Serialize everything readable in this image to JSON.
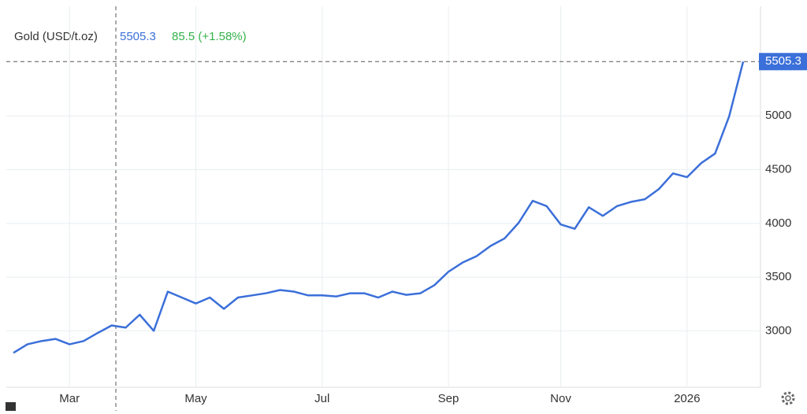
{
  "chart_data": {
    "type": "line",
    "title": "Gold (USD/t.oz)",
    "change": "85.5 (+1.58%)",
    "categories": [
      null,
      null,
      null,
      null,
      "Mar",
      null,
      null,
      null,
      null,
      null,
      null,
      null,
      null,
      "May",
      null,
      null,
      null,
      null,
      null,
      null,
      null,
      null,
      "Jul",
      null,
      null,
      null,
      null,
      null,
      null,
      null,
      null,
      "Sep",
      null,
      null,
      null,
      null,
      null,
      null,
      null,
      "Nov",
      null,
      null,
      null,
      null,
      null,
      null,
      null,
      null,
      "2026",
      null,
      null,
      null,
      null
    ],
    "series": [
      {
        "name": "Gold",
        "color": "#3b6fd9",
        "values": [
          2795,
          2875,
          2905,
          2925,
          2875,
          2905,
          2980,
          3050,
          3030,
          3150,
          3000,
          3365,
          3310,
          3255,
          3310,
          3205,
          3310,
          3330,
          3350,
          3380,
          3365,
          3330,
          3330,
          3320,
          3350,
          3350,
          3310,
          3365,
          3335,
          3350,
          3425,
          3550,
          3635,
          3695,
          3790,
          3860,
          4005,
          4210,
          4160,
          3990,
          3950,
          4150,
          4070,
          4160,
          4200,
          4225,
          4320,
          4465,
          4430,
          4560,
          4650,
          4995,
          5505.3
        ]
      }
    ],
    "ylim": [
      2490,
      6020
    ],
    "yticks": [
      3000,
      3500,
      4000,
      4500,
      5000
    ],
    "grid": true
  }
}
